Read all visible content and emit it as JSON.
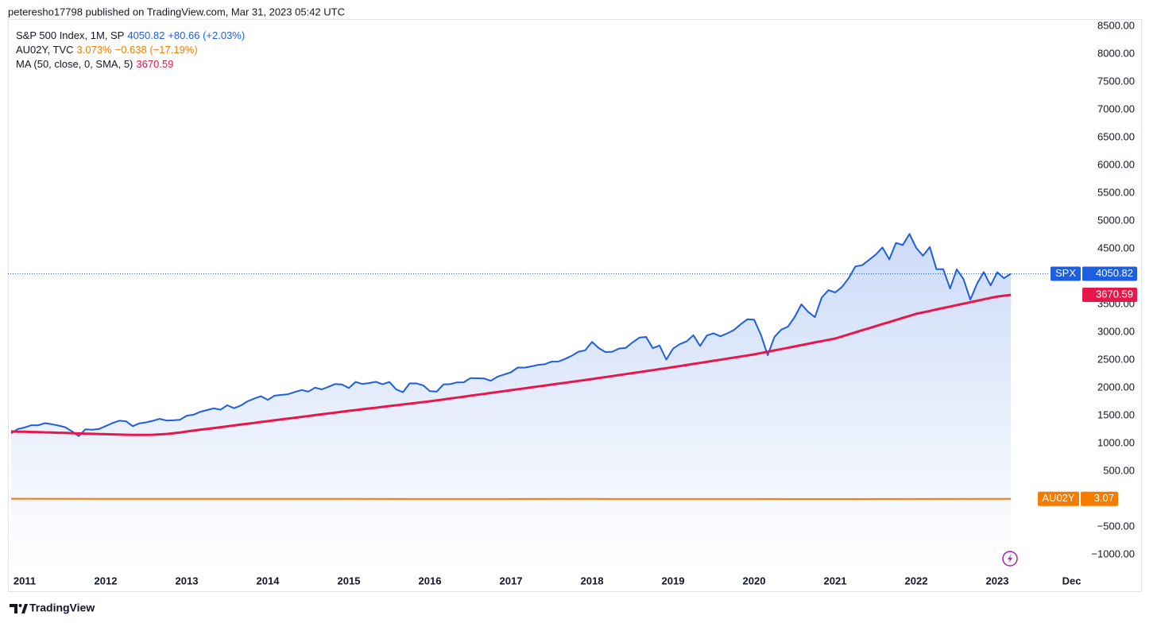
{
  "header": {
    "published": "peteresho17798 published on TradingView.com, Mar 31, 2023 05:42 UTC",
    "brand": "TradingView"
  },
  "chart_data": {
    "type": "line",
    "xlim": [
      2010.794,
      2023.441
    ],
    "ylim": [
      -1286,
      8686
    ],
    "xticks": [
      2011,
      2012,
      2013,
      2014,
      2015,
      2016,
      2017,
      2018,
      2019,
      2020,
      2021,
      2022,
      2023,
      {
        "value": 2023.917,
        "label": "Dec"
      }
    ],
    "yticks": [
      {
        "value": 8500,
        "label": "8500.00"
      },
      {
        "value": 8000,
        "label": "8000.00"
      },
      {
        "value": 7500,
        "label": "7500.00"
      },
      {
        "value": 7000,
        "label": "7000.00"
      },
      {
        "value": 6500,
        "label": "6500.00"
      },
      {
        "value": 6000,
        "label": "6000.00"
      },
      {
        "value": 5500,
        "label": "5500.00"
      },
      {
        "value": 5000,
        "label": "5000.00"
      },
      {
        "value": 4500,
        "label": "4500.00"
      },
      {
        "value": 4000,
        "label": "4000.00"
      },
      {
        "value": 3500,
        "label": "3500.00"
      },
      {
        "value": 3000,
        "label": "3000.00"
      },
      {
        "value": 2500,
        "label": "2500.00"
      },
      {
        "value": 2000,
        "label": "2000.00"
      },
      {
        "value": 1500,
        "label": "1500.00"
      },
      {
        "value": 1000,
        "label": "1000.00"
      },
      {
        "value": 500,
        "label": "500.00"
      },
      {
        "value": -500,
        "label": "−500.00"
      },
      {
        "value": -1000,
        "label": "−1000.00"
      }
    ],
    "x": [
      2010.833,
      2010.917,
      2011,
      2011.083,
      2011.167,
      2011.25,
      2011.333,
      2011.417,
      2011.5,
      2011.583,
      2011.667,
      2011.75,
      2011.833,
      2011.917,
      2012,
      2012.083,
      2012.167,
      2012.25,
      2012.333,
      2012.417,
      2012.5,
      2012.583,
      2012.667,
      2012.75,
      2012.833,
      2012.917,
      2013,
      2013.083,
      2013.167,
      2013.25,
      2013.333,
      2013.417,
      2013.5,
      2013.583,
      2013.667,
      2013.75,
      2013.833,
      2013.917,
      2014,
      2014.083,
      2014.167,
      2014.25,
      2014.333,
      2014.417,
      2014.5,
      2014.583,
      2014.667,
      2014.75,
      2014.833,
      2014.917,
      2015,
      2015.083,
      2015.167,
      2015.25,
      2015.333,
      2015.417,
      2015.5,
      2015.583,
      2015.667,
      2015.75,
      2015.833,
      2015.917,
      2016,
      2016.083,
      2016.167,
      2016.25,
      2016.333,
      2016.417,
      2016.5,
      2016.583,
      2016.667,
      2016.75,
      2016.833,
      2016.917,
      2017,
      2017.083,
      2017.167,
      2017.25,
      2017.333,
      2017.417,
      2017.5,
      2017.583,
      2017.667,
      2017.75,
      2017.833,
      2017.917,
      2018,
      2018.083,
      2018.167,
      2018.25,
      2018.333,
      2018.417,
      2018.5,
      2018.583,
      2018.667,
      2018.75,
      2018.833,
      2018.917,
      2019,
      2019.083,
      2019.167,
      2019.25,
      2019.333,
      2019.417,
      2019.5,
      2019.583,
      2019.667,
      2019.75,
      2019.833,
      2019.917,
      2020,
      2020.083,
      2020.167,
      2020.25,
      2020.333,
      2020.417,
      2020.5,
      2020.583,
      2020.667,
      2020.75,
      2020.833,
      2020.917,
      2021,
      2021.083,
      2021.167,
      2021.25,
      2021.333,
      2021.417,
      2021.5,
      2021.583,
      2021.667,
      2021.75,
      2021.833,
      2021.917,
      2022,
      2022.083,
      2022.167,
      2022.25,
      2022.333,
      2022.417,
      2022.5,
      2022.583,
      2022.667,
      2022.75,
      2022.833,
      2022.917,
      2023,
      2023.083,
      2023.167
    ],
    "series": [
      {
        "name": "S&P 500 Index, 1M, SP",
        "change_label": "+80.66 (+2.03%)",
        "badge": "SPX",
        "color": "#1e5fe0",
        "values": [
          1180,
          1258,
          1286,
          1327,
          1326,
          1364,
          1345,
          1321,
          1292,
          1219,
          1131,
          1253,
          1247,
          1258,
          1312,
          1366,
          1408,
          1398,
          1310,
          1362,
          1379,
          1407,
          1441,
          1412,
          1416,
          1426,
          1498,
          1515,
          1569,
          1598,
          1631,
          1606,
          1686,
          1633,
          1682,
          1757,
          1806,
          1848,
          1783,
          1859,
          1872,
          1884,
          1924,
          1960,
          1931,
          2003,
          1972,
          2018,
          2068,
          2059,
          1995,
          2105,
          2068,
          2086,
          2107,
          2063,
          2104,
          1972,
          1920,
          2079,
          2080,
          2044,
          1940,
          1932,
          2060,
          2065,
          2097,
          2099,
          2174,
          2171,
          2168,
          2126,
          2199,
          2239,
          2279,
          2364,
          2363,
          2384,
          2412,
          2423,
          2470,
          2472,
          2519,
          2575,
          2648,
          2674,
          2824,
          2714,
          2641,
          2648,
          2705,
          2718,
          2816,
          2902,
          2914,
          2712,
          2760,
          2507,
          2704,
          2784,
          2834,
          2946,
          2752,
          2942,
          2980,
          2926,
          2977,
          3038,
          3141,
          3231,
          3226,
          2954,
          2585,
          2912,
          3044,
          3100,
          3271,
          3500,
          3363,
          3270,
          3622,
          3756,
          3714,
          3811,
          3973,
          4181,
          4204,
          4298,
          4395,
          4523,
          4308,
          4605,
          4567,
          4766,
          4516,
          4374,
          4530,
          4132,
          4132,
          3785,
          4130,
          3955,
          3586,
          3872,
          4080,
          3840,
          4077,
          3970,
          4050.82
        ]
      },
      {
        "name": "MA (50, close, 0, SMA, 5)",
        "color": "#e8174a",
        "values": [
          1215,
          1212,
          1210,
          1206,
          1203,
          1199,
          1195,
          1191,
          1188,
          1184,
          1180,
          1176,
          1173,
          1169,
          1165,
          1162,
          1158,
          1155,
          1153,
          1152,
          1153,
          1156,
          1162,
          1170,
          1182,
          1196,
          1214,
          1230,
          1245,
          1261,
          1276,
          1292,
          1307,
          1323,
          1338,
          1354,
          1369,
          1385,
          1400,
          1415,
          1431,
          1446,
          1462,
          1477,
          1492,
          1508,
          1523,
          1539,
          1554,
          1570,
          1585,
          1599,
          1614,
          1628,
          1642,
          1657,
          1671,
          1685,
          1700,
          1714,
          1728,
          1743,
          1757,
          1774,
          1790,
          1807,
          1824,
          1840,
          1857,
          1874,
          1890,
          1907,
          1924,
          1940,
          1957,
          1974,
          1990,
          2007,
          2024,
          2040,
          2057,
          2074,
          2090,
          2107,
          2124,
          2140,
          2157,
          2175,
          2193,
          2210,
          2228,
          2246,
          2264,
          2282,
          2300,
          2317,
          2335,
          2353,
          2371,
          2390,
          2409,
          2428,
          2447,
          2466,
          2485,
          2504,
          2524,
          2543,
          2562,
          2581,
          2600,
          2624,
          2648,
          2672,
          2695,
          2719,
          2743,
          2767,
          2791,
          2815,
          2838,
          2862,
          2886,
          2923,
          2960,
          2997,
          3034,
          3071,
          3108,
          3145,
          3182,
          3219,
          3256,
          3293,
          3330,
          3356,
          3382,
          3408,
          3434,
          3460,
          3486,
          3512,
          3538,
          3564,
          3590,
          3616,
          3640,
          3655,
          3670.59
        ]
      },
      {
        "name": "AU02Y, TVC",
        "last_label": "3.073%",
        "change_label": "−0.638 (−17.19%)",
        "badge": "AU02Y",
        "axis_label": "3.07",
        "color": "#f57c00",
        "x": [
          2010.833,
          2011,
          2012,
          2013,
          2014,
          2015,
          2016,
          2017,
          2018,
          2019,
          2020,
          2021,
          2022,
          2023,
          2023.167
        ],
        "values": [
          5.1,
          4.9,
          3.0,
          2.6,
          2.6,
          2.0,
          1.8,
          1.8,
          2.0,
          1.7,
          0.9,
          0.1,
          0.8,
          3.4,
          3.073
        ]
      }
    ]
  }
}
